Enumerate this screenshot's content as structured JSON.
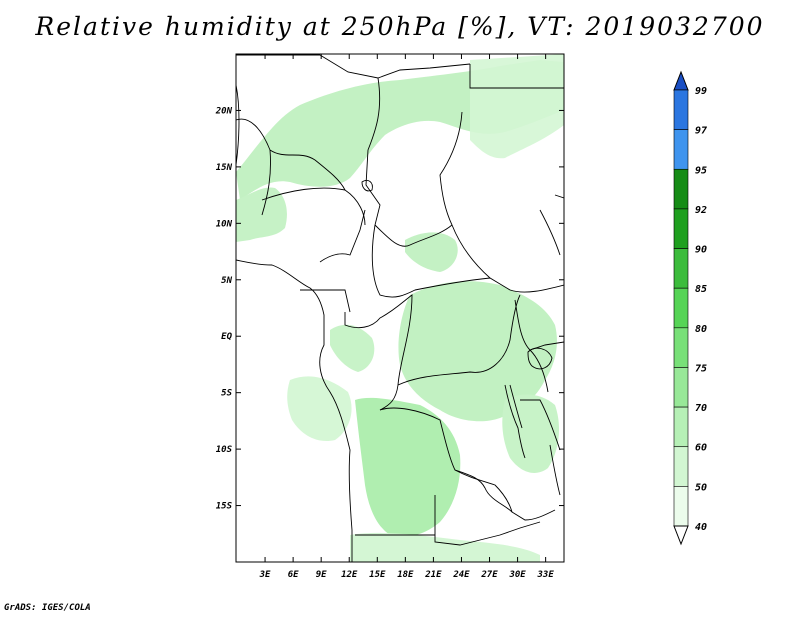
{
  "title": "Relative humidity at 250hPa [%], VT: 2019032700",
  "footer": "GrADS: IGES/COLA",
  "map": {
    "lon_range": [
      0,
      35
    ],
    "lat_range": [
      -20,
      25
    ],
    "lat_ticks": [
      "20N",
      "15N",
      "10N",
      "5N",
      "EQ",
      "5S",
      "10S",
      "15S"
    ],
    "lon_ticks": [
      "3E",
      "6E",
      "9E",
      "12E",
      "15E",
      "18E",
      "21E",
      "24E",
      "27E",
      "30E",
      "33E"
    ]
  },
  "colorbar": {
    "levels": [
      "99",
      "97",
      "95",
      "92",
      "90",
      "85",
      "80",
      "75",
      "70",
      "60",
      "50",
      "40"
    ],
    "colors": [
      "#1c5fd0",
      "#2b76e0",
      "#3f94ee",
      "#168c16",
      "#1fa01f",
      "#3cbc3c",
      "#56d456",
      "#78e078",
      "#98e898",
      "#b6f0b6",
      "#d2f6d2",
      "#ecfcec"
    ],
    "over_color": "#1a4fc4",
    "under_color": "#ffffff"
  }
}
